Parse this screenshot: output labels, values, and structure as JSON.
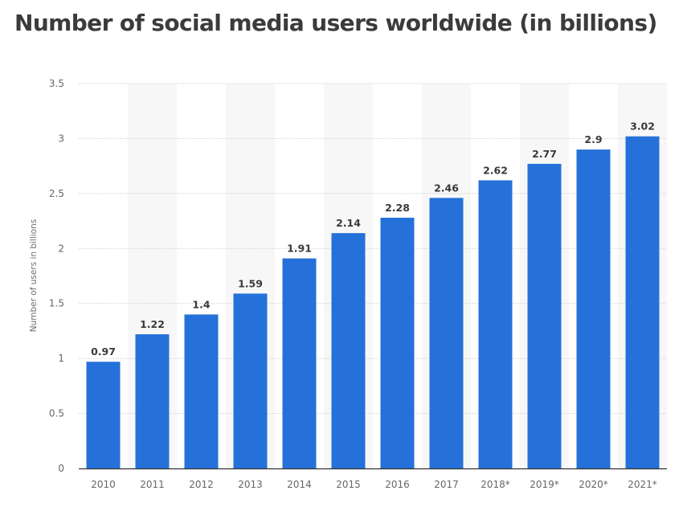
{
  "chart_data": {
    "type": "bar",
    "title": "Number of social media users worldwide (in billions)",
    "xlabel": "",
    "ylabel": "Number of users in billions",
    "categories": [
      "2010",
      "2011",
      "2012",
      "2013",
      "2014",
      "2015",
      "2016",
      "2017",
      "2018*",
      "2019*",
      "2020*",
      "2021*"
    ],
    "values": [
      0.97,
      1.22,
      1.4,
      1.59,
      1.91,
      2.14,
      2.28,
      2.46,
      2.62,
      2.77,
      2.9,
      3.02
    ],
    "data_labels": [
      "0.97",
      "1.22",
      "1.4",
      "1.59",
      "1.91",
      "2.14",
      "2.28",
      "2.46",
      "2.62",
      "2.77",
      "2.9",
      "3.02"
    ],
    "ylim": [
      0,
      3.5
    ],
    "yticks": [
      0,
      0.5,
      1,
      1.5,
      2,
      2.5,
      3,
      3.5
    ],
    "ytick_labels": [
      "0",
      "0.5",
      "1",
      "1.5",
      "2",
      "2.5",
      "3",
      "3.5"
    ],
    "grid": true,
    "legend": "none",
    "colors": {
      "bar": "#2671d9",
      "band": "#f7f7f7",
      "grid": "#dcdcdc",
      "axis": "#333333"
    }
  }
}
